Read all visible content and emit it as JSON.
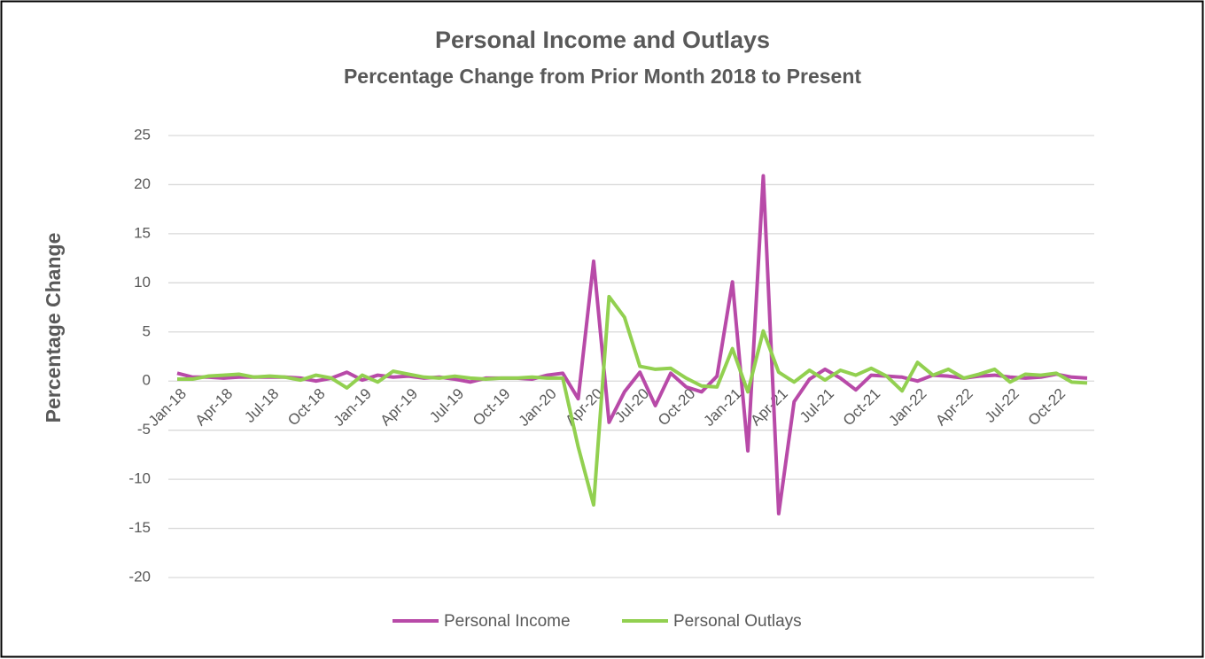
{
  "chart_data": {
    "type": "line",
    "title": "Personal Income and Outlays",
    "subtitle": "Percentage Change from Prior Month 2018 to Present",
    "y_label": "Percentage Change",
    "categories": [
      "Jan-18",
      null,
      null,
      "Apr-18",
      null,
      null,
      "Jul-18",
      null,
      null,
      "Oct-18",
      null,
      null,
      "Jan-19",
      null,
      null,
      "Apr-19",
      null,
      null,
      "Jul-19",
      null,
      null,
      "Oct-19",
      null,
      null,
      "Jan-20",
      null,
      null,
      "Apr-20",
      null,
      null,
      "Jul-20",
      null,
      null,
      "Oct-20",
      null,
      null,
      "Jan-21",
      null,
      null,
      "Apr-21",
      null,
      null,
      "Jul-21",
      null,
      null,
      "Oct-21",
      null,
      null,
      "Jan-22",
      null,
      null,
      "Apr-22",
      null,
      null,
      "Jul-22",
      null,
      null,
      "Oct-22",
      null,
      null
    ],
    "series": [
      {
        "name": "Personal Income",
        "color": "#b84aa8",
        "values": [
          0.8,
          0.4,
          0.4,
          0.3,
          0.4,
          0.4,
          0.4,
          0.4,
          0.3,
          0.0,
          0.3,
          0.9,
          0.1,
          0.6,
          0.4,
          0.5,
          0.3,
          0.4,
          0.2,
          -0.1,
          0.3,
          0.3,
          0.3,
          0.2,
          0.6,
          0.8,
          -1.8,
          12.2,
          -4.2,
          -1.1,
          0.9,
          -2.5,
          0.8,
          -0.6,
          -1.1,
          0.5,
          10.1,
          -7.1,
          20.9,
          -13.5,
          -2.1,
          0.2,
          1.2,
          0.3,
          -0.9,
          0.6,
          0.5,
          0.4,
          0.0,
          0.6,
          0.5,
          0.3,
          0.5,
          0.6,
          0.4,
          0.3,
          0.4,
          0.7,
          0.4,
          0.3
        ]
      },
      {
        "name": "Personal Outlays",
        "color": "#92d050",
        "values": [
          0.2,
          0.2,
          0.5,
          0.6,
          0.7,
          0.4,
          0.5,
          0.4,
          0.1,
          0.6,
          0.3,
          -0.7,
          0.6,
          -0.1,
          1.0,
          0.7,
          0.4,
          0.3,
          0.5,
          0.3,
          0.2,
          0.3,
          0.3,
          0.4,
          0.3,
          0.3,
          -6.7,
          -12.6,
          8.6,
          6.5,
          1.5,
          1.2,
          1.3,
          0.3,
          -0.5,
          -0.6,
          3.3,
          -1.1,
          5.1,
          0.9,
          -0.1,
          1.1,
          0.1,
          1.1,
          0.6,
          1.3,
          0.5,
          -1.0,
          1.9,
          0.6,
          1.2,
          0.3,
          0.7,
          1.2,
          -0.1,
          0.7,
          0.6,
          0.8,
          -0.1,
          -0.2
        ]
      }
    ],
    "ylim": [
      -20,
      25
    ],
    "yticks": [
      -20,
      -15,
      -10,
      -5,
      0,
      5,
      10,
      15,
      20,
      25
    ],
    "grid": true,
    "legend": "bottom"
  }
}
